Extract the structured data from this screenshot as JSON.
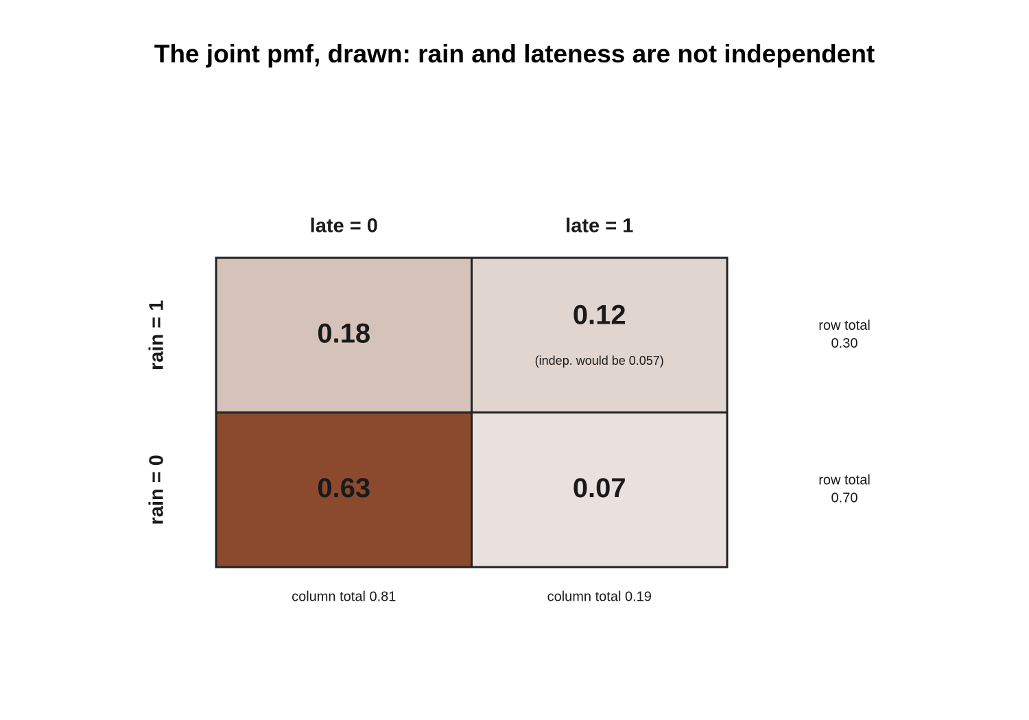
{
  "chart_data": {
    "type": "heatmap",
    "title": "The joint pmf, drawn: rain and lateness are not independent",
    "x_categories": [
      "late = 0",
      "late = 1"
    ],
    "y_categories": [
      "rain = 1",
      "rain = 0"
    ],
    "values": [
      [
        0.18,
        0.12
      ],
      [
        0.63,
        0.07
      ]
    ],
    "cell_colors": [
      [
        "#d5c3b9",
        "#e0d5cf"
      ],
      [
        "#8b4a2e",
        "#e9e1de"
      ]
    ],
    "border_color": "#222222",
    "annotation": "(indep. would be 0.057)",
    "row_totals": {
      "label": "row total",
      "values": [
        0.3,
        0.7
      ],
      "value_labels": [
        "0.30",
        "0.70"
      ]
    },
    "column_totals": {
      "values": [
        0.81,
        0.19
      ],
      "value_labels": [
        "column total 0.81",
        "column total 0.19"
      ]
    }
  }
}
